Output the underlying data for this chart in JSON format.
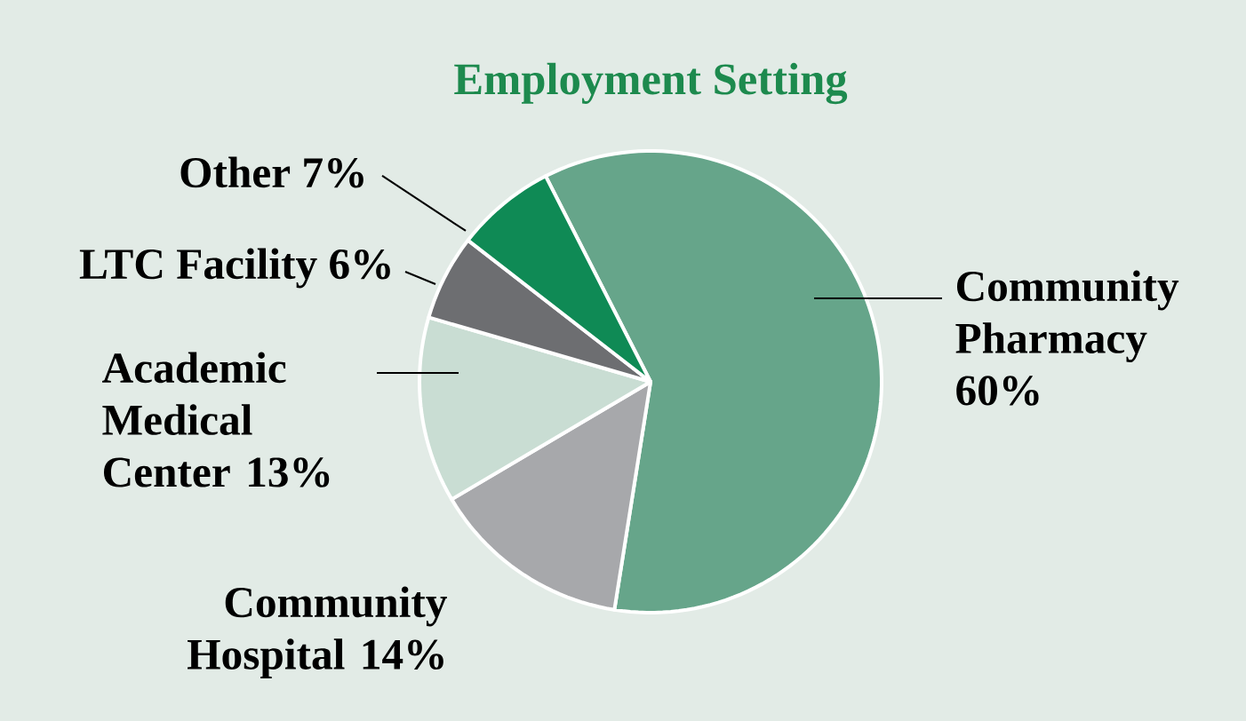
{
  "chart_data": {
    "type": "pie",
    "title": "Employment Setting",
    "categories": [
      "Community Pharmacy",
      "Community Hospital",
      "Academic Medical Center",
      "LTC Facility",
      "Other"
    ],
    "values": [
      60,
      14,
      13,
      6,
      7
    ],
    "value_labels": [
      "60%",
      "14%",
      "13%",
      "6%",
      "7%"
    ],
    "colors": [
      "#66a58a",
      "#a7a8ab",
      "#c9ddd3",
      "#6d6e71",
      "#0f8a55"
    ]
  }
}
